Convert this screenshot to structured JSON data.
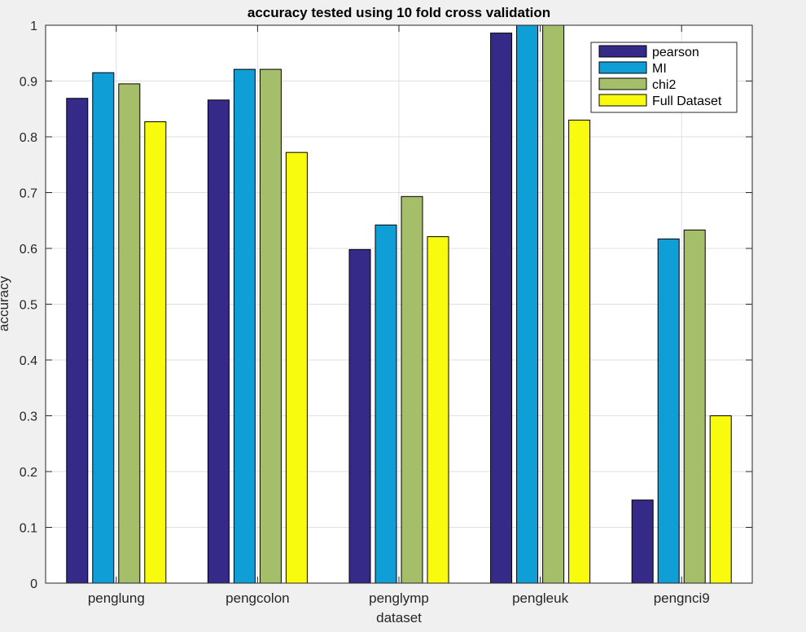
{
  "chart_data": {
    "type": "bar",
    "title": "accuracy tested using 10 fold cross validation",
    "xlabel": "dataset",
    "ylabel": "accuracy",
    "categories": [
      "penglung",
      "pengcolon",
      "penglymp",
      "pengleuk",
      "pengnci9"
    ],
    "ylim": [
      0,
      1
    ],
    "yticks": [
      "0",
      "0.1",
      "0.2",
      "0.3",
      "0.4",
      "0.5",
      "0.6",
      "0.7",
      "0.8",
      "0.9",
      "1"
    ],
    "grid": true,
    "legend_position": "top-right",
    "series": [
      {
        "name": "pearson",
        "color": "#352a87",
        "values": [
          0.869,
          0.866,
          0.598,
          0.986,
          0.149
        ]
      },
      {
        "name": "MI",
        "color": "#0f9ed6",
        "values": [
          0.915,
          0.921,
          0.642,
          1.0,
          0.617
        ]
      },
      {
        "name": "chi2",
        "color": "#a5be6a",
        "values": [
          0.895,
          0.921,
          0.693,
          1.0,
          0.633
        ]
      },
      {
        "name": "Full Dataset",
        "color": "#f9fb0e",
        "values": [
          0.827,
          0.772,
          0.621,
          0.83,
          0.3
        ]
      }
    ]
  }
}
